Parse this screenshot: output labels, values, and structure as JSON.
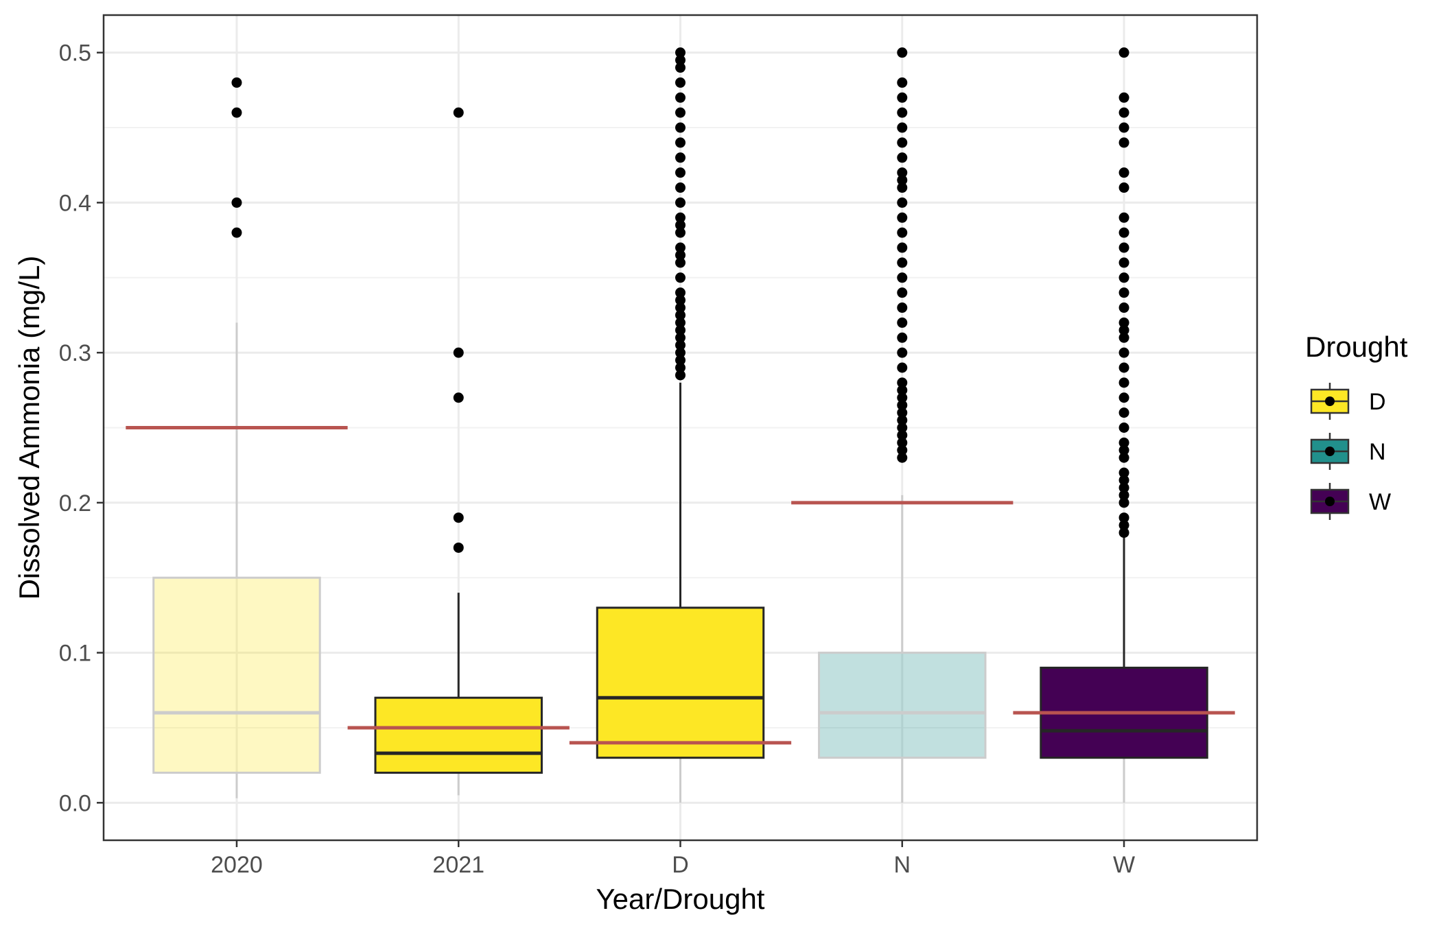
{
  "chart_data": {
    "type": "box",
    "xlabel": "Year/Drought",
    "ylabel": "Dissolved Ammonia (mg/L)",
    "ylim": [
      -0.025,
      0.525
    ],
    "yticks": [
      0.0,
      0.1,
      0.2,
      0.3,
      0.4,
      0.5
    ],
    "ytick_labels": [
      "0.0",
      "0.1",
      "0.2",
      "0.3",
      "0.4",
      "0.5"
    ],
    "categories": [
      "2020",
      "2021",
      "D",
      "N",
      "W"
    ],
    "grid": true,
    "legend": {
      "title": "Drought",
      "position": "right",
      "items": [
        {
          "label": "D",
          "color": "#FDE725"
        },
        {
          "label": "N",
          "color": "#21908C"
        },
        {
          "label": "W",
          "color": "#440154"
        }
      ]
    },
    "boxes": [
      {
        "category": "2020",
        "color": "#FDE725",
        "faded": true,
        "q1": 0.02,
        "median": 0.06,
        "q3": 0.15,
        "whisker_low": 0.003,
        "whisker_high": 0.32,
        "outliers": [
          0.38,
          0.4,
          0.46,
          0.48
        ],
        "reference": 0.25
      },
      {
        "category": "2021",
        "color": "#FDE725",
        "faded": false,
        "q1": 0.02,
        "median": 0.033,
        "q3": 0.07,
        "whisker_low": 0.005,
        "whisker_high": 0.14,
        "outliers": [
          0.17,
          0.19,
          0.27,
          0.3,
          0.46
        ],
        "reference": 0.05
      },
      {
        "category": "D",
        "color": "#FDE725",
        "faded": false,
        "q1": 0.03,
        "median": 0.07,
        "q3": 0.13,
        "whisker_low": 0.0,
        "whisker_high": 0.28,
        "outliers": [
          0.285,
          0.29,
          0.295,
          0.3,
          0.305,
          0.31,
          0.315,
          0.32,
          0.325,
          0.33,
          0.335,
          0.34,
          0.35,
          0.36,
          0.365,
          0.37,
          0.38,
          0.385,
          0.39,
          0.4,
          0.41,
          0.42,
          0.43,
          0.44,
          0.45,
          0.46,
          0.47,
          0.48,
          0.49,
          0.495,
          0.5
        ],
        "reference": 0.04
      },
      {
        "category": "N",
        "color": "#21908C",
        "faded": true,
        "q1": 0.03,
        "median": 0.06,
        "q3": 0.1,
        "whisker_low": 0.0,
        "whisker_high": 0.205,
        "outliers": [
          0.23,
          0.235,
          0.24,
          0.245,
          0.25,
          0.255,
          0.26,
          0.265,
          0.27,
          0.275,
          0.28,
          0.29,
          0.3,
          0.31,
          0.32,
          0.33,
          0.34,
          0.35,
          0.36,
          0.37,
          0.38,
          0.39,
          0.4,
          0.41,
          0.415,
          0.42,
          0.43,
          0.44,
          0.45,
          0.46,
          0.47,
          0.48,
          0.5
        ],
        "reference": 0.2
      },
      {
        "category": "W",
        "color": "#440154",
        "faded": false,
        "q1": 0.03,
        "median": 0.048,
        "q3": 0.09,
        "whisker_low": 0.0,
        "whisker_high": 0.18,
        "outliers": [
          0.18,
          0.185,
          0.19,
          0.2,
          0.205,
          0.21,
          0.215,
          0.22,
          0.23,
          0.235,
          0.24,
          0.25,
          0.26,
          0.27,
          0.28,
          0.29,
          0.3,
          0.31,
          0.315,
          0.32,
          0.33,
          0.34,
          0.35,
          0.36,
          0.37,
          0.38,
          0.39,
          0.41,
          0.42,
          0.44,
          0.45,
          0.46,
          0.47,
          0.5
        ],
        "reference": 0.06
      }
    ],
    "reference_line_color": "#B85450"
  }
}
